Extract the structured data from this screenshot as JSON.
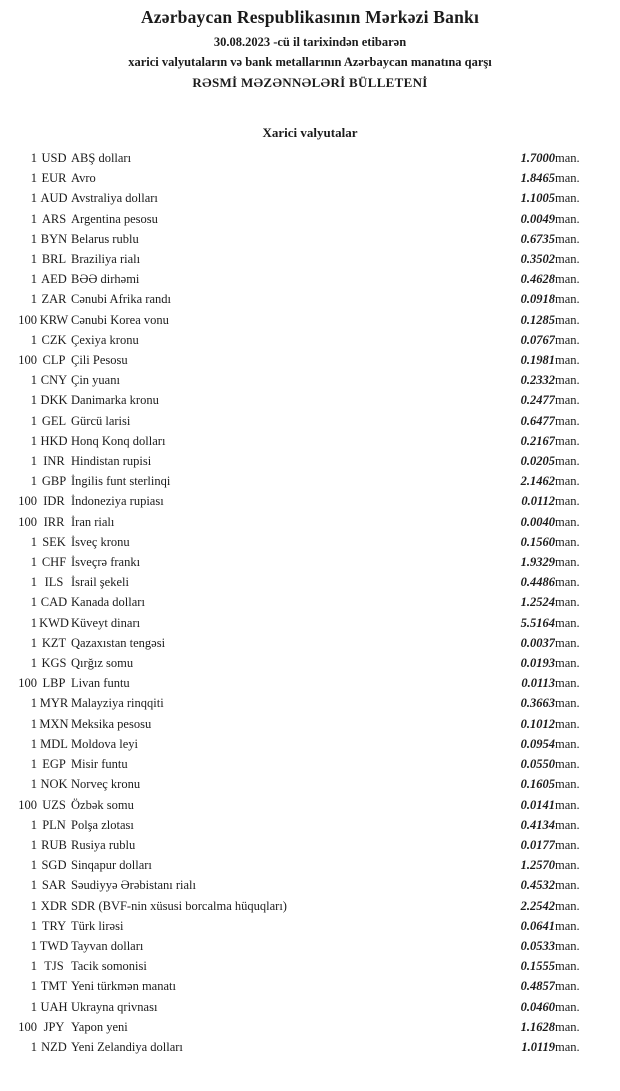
{
  "header": {
    "title": "Azərbaycan Respublikasının Mərkəzi Bankı",
    "date_line": "30.08.2023 -cü il tarixindən etibarən",
    "subtitle": "xarici valyutaların və bank metallarının Azərbaycan manatına qarşı",
    "bulletin_title": "RƏSMİ MƏZƏNNƏLƏRİ BÜLLETENİ"
  },
  "section": {
    "title": "Xarici valyutalar"
  },
  "unit_label": "man.",
  "rows": [
    {
      "qty": "1",
      "code": "USD",
      "name": "ABŞ dolları",
      "rate": "1.7000"
    },
    {
      "qty": "1",
      "code": "EUR",
      "name": "Avro",
      "rate": "1.8465"
    },
    {
      "qty": "1",
      "code": "AUD",
      "name": "Avstraliya dolları",
      "rate": "1.1005"
    },
    {
      "qty": "1",
      "code": "ARS",
      "name": "Argentina pesosu",
      "rate": "0.0049"
    },
    {
      "qty": "1",
      "code": "BYN",
      "name": "Belarus rublu",
      "rate": "0.6735"
    },
    {
      "qty": "1",
      "code": "BRL",
      "name": "Braziliya rialı",
      "rate": "0.3502"
    },
    {
      "qty": "1",
      "code": "AED",
      "name": "BƏƏ dirhəmi",
      "rate": "0.4628"
    },
    {
      "qty": "1",
      "code": "ZAR",
      "name": "Cənubi Afrika randı",
      "rate": "0.0918"
    },
    {
      "qty": "100",
      "code": "KRW",
      "name": "Cənubi Korea vonu",
      "rate": "0.1285"
    },
    {
      "qty": "1",
      "code": "CZK",
      "name": "Çexiya kronu",
      "rate": "0.0767"
    },
    {
      "qty": "100",
      "code": "CLP",
      "name": "Çili Pesosu",
      "rate": "0.1981"
    },
    {
      "qty": "1",
      "code": "CNY",
      "name": "Çin yuanı",
      "rate": "0.2332"
    },
    {
      "qty": "1",
      "code": "DKK",
      "name": "Danimarka kronu",
      "rate": "0.2477"
    },
    {
      "qty": "1",
      "code": "GEL",
      "name": "Gürcü larisi",
      "rate": "0.6477"
    },
    {
      "qty": "1",
      "code": "HKD",
      "name": "Honq Konq dolları",
      "rate": "0.2167"
    },
    {
      "qty": "1",
      "code": "INR",
      "name": "Hindistan rupisi",
      "rate": "0.0205"
    },
    {
      "qty": "1",
      "code": "GBP",
      "name": "İngilis funt sterlinqi",
      "rate": "2.1462"
    },
    {
      "qty": "100",
      "code": "IDR",
      "name": "İndoneziya rupiası",
      "rate": "0.0112"
    },
    {
      "qty": "100",
      "code": "IRR",
      "name": "İran rialı",
      "rate": "0.0040"
    },
    {
      "qty": "1",
      "code": "SEK",
      "name": "İsveç kronu",
      "rate": "0.1560"
    },
    {
      "qty": "1",
      "code": "CHF",
      "name": "İsveçrə frankı",
      "rate": "1.9329"
    },
    {
      "qty": "1",
      "code": "ILS",
      "name": "İsrail şekeli",
      "rate": "0.4486"
    },
    {
      "qty": "1",
      "code": "CAD",
      "name": "Kanada dolları",
      "rate": "1.2524"
    },
    {
      "qty": "1",
      "code": "KWD",
      "name": "Küveyt dinarı",
      "rate": "5.5164"
    },
    {
      "qty": "1",
      "code": "KZT",
      "name": "Qazaxıstan tengəsi",
      "rate": "0.0037"
    },
    {
      "qty": "1",
      "code": "KGS",
      "name": "Qırğız somu",
      "rate": "0.0193"
    },
    {
      "qty": "100",
      "code": "LBP",
      "name": "Livan funtu",
      "rate": "0.0113"
    },
    {
      "qty": "1",
      "code": "MYR",
      "name": "Malayziya rinqqiti",
      "rate": "0.3663"
    },
    {
      "qty": "1",
      "code": "MXN",
      "name": "Meksika pesosu",
      "rate": "0.1012"
    },
    {
      "qty": "1",
      "code": "MDL",
      "name": "Moldova leyi",
      "rate": "0.0954"
    },
    {
      "qty": "1",
      "code": "EGP",
      "name": "Misir funtu",
      "rate": "0.0550"
    },
    {
      "qty": "1",
      "code": "NOK",
      "name": "Norveç kronu",
      "rate": "0.1605"
    },
    {
      "qty": "100",
      "code": "UZS",
      "name": "Özbək somu",
      "rate": "0.0141"
    },
    {
      "qty": "1",
      "code": "PLN",
      "name": "Polşa zlotası",
      "rate": "0.4134"
    },
    {
      "qty": "1",
      "code": "RUB",
      "name": "Rusiya rublu",
      "rate": "0.0177"
    },
    {
      "qty": "1",
      "code": "SGD",
      "name": "Sinqapur dolları",
      "rate": "1.2570"
    },
    {
      "qty": "1",
      "code": "SAR",
      "name": "Səudiyyə Ərəbistanı rialı",
      "rate": "0.4532"
    },
    {
      "qty": "1",
      "code": "XDR",
      "name": "SDR (BVF-nin xüsusi borcalma hüquqları)",
      "rate": "2.2542"
    },
    {
      "qty": "1",
      "code": "TRY",
      "name": "Türk lirəsi",
      "rate": "0.0641"
    },
    {
      "qty": "1",
      "code": "TWD",
      "name": "Tayvan dolları",
      "rate": "0.0533"
    },
    {
      "qty": "1",
      "code": "TJS",
      "name": "Tacik somonisi",
      "rate": "0.1555"
    },
    {
      "qty": "1",
      "code": "TMT",
      "name": "Yeni türkmən manatı",
      "rate": "0.4857"
    },
    {
      "qty": "1",
      "code": "UAH",
      "name": "Ukrayna qrivnası",
      "rate": "0.0460"
    },
    {
      "qty": "100",
      "code": "JPY",
      "name": "Yapon yeni",
      "rate": "1.1628"
    },
    {
      "qty": "1",
      "code": "NZD",
      "name": "Yeni Zelandiya dolları",
      "rate": "1.0119"
    }
  ]
}
